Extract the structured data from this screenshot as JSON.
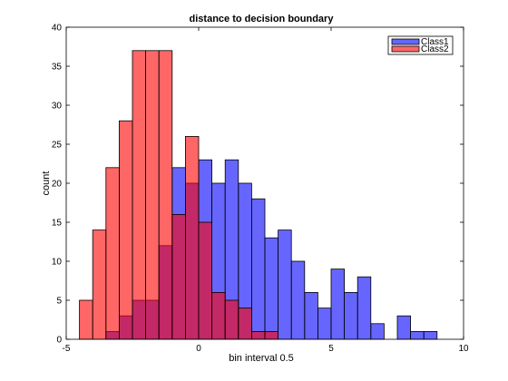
{
  "chart_data": {
    "type": "histogram",
    "title": "distance to decision boundary",
    "xlabel": "bin interval 0.5",
    "ylabel": "count",
    "xlim": [
      -5,
      10
    ],
    "ylim": [
      0,
      40
    ],
    "xticks": [
      -5,
      0,
      5,
      10
    ],
    "yticks": [
      0,
      5,
      10,
      15,
      20,
      25,
      30,
      35,
      40
    ],
    "bin_width": 0.5,
    "legend_position": "top-right",
    "grid": false,
    "series": [
      {
        "name": "Class1",
        "color": "#0000ff",
        "bins": [
          {
            "x0": -3.5,
            "count": 1
          },
          {
            "x0": -3.0,
            "count": 3
          },
          {
            "x0": -2.5,
            "count": 5
          },
          {
            "x0": -2.0,
            "count": 5
          },
          {
            "x0": -1.5,
            "count": 12
          },
          {
            "x0": -1.0,
            "count": 22
          },
          {
            "x0": -0.5,
            "count": 20
          },
          {
            "x0": 0.0,
            "count": 23
          },
          {
            "x0": 0.5,
            "count": 20
          },
          {
            "x0": 1.0,
            "count": 23
          },
          {
            "x0": 1.5,
            "count": 20
          },
          {
            "x0": 2.0,
            "count": 18
          },
          {
            "x0": 2.5,
            "count": 13
          },
          {
            "x0": 3.0,
            "count": 14
          },
          {
            "x0": 3.5,
            "count": 10
          },
          {
            "x0": 4.0,
            "count": 6
          },
          {
            "x0": 4.5,
            "count": 4
          },
          {
            "x0": 5.0,
            "count": 9
          },
          {
            "x0": 5.5,
            "count": 6
          },
          {
            "x0": 6.0,
            "count": 8
          },
          {
            "x0": 6.5,
            "count": 2
          },
          {
            "x0": 7.0,
            "count": 0
          },
          {
            "x0": 7.5,
            "count": 3
          },
          {
            "x0": 8.0,
            "count": 1
          },
          {
            "x0": 8.5,
            "count": 1
          }
        ]
      },
      {
        "name": "Class2",
        "color": "#ff0000",
        "bins": [
          {
            "x0": -4.5,
            "count": 5
          },
          {
            "x0": -4.0,
            "count": 14
          },
          {
            "x0": -3.5,
            "count": 22
          },
          {
            "x0": -3.0,
            "count": 28
          },
          {
            "x0": -2.5,
            "count": 37
          },
          {
            "x0": -2.0,
            "count": 37
          },
          {
            "x0": -1.5,
            "count": 37
          },
          {
            "x0": -1.0,
            "count": 16
          },
          {
            "x0": -0.5,
            "count": 26
          },
          {
            "x0": 0.0,
            "count": 15
          },
          {
            "x0": 0.5,
            "count": 6
          },
          {
            "x0": 1.0,
            "count": 5
          },
          {
            "x0": 1.5,
            "count": 4
          },
          {
            "x0": 2.0,
            "count": 1
          },
          {
            "x0": 2.5,
            "count": 1
          }
        ]
      }
    ]
  }
}
